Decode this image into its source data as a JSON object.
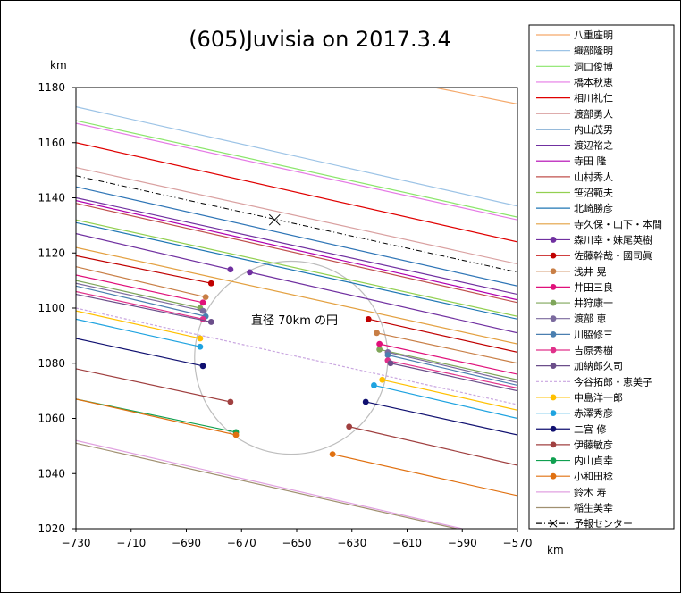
{
  "chart_data": {
    "type": "line",
    "title": "(605)Juvisia on 2017.3.4",
    "xlabel": "km",
    "ylabel": "km",
    "xlim": [
      -730,
      -570
    ],
    "ylim": [
      1020,
      1180
    ],
    "xticks": [
      -730,
      -710,
      -690,
      -670,
      -650,
      -630,
      -610,
      -590,
      -570
    ],
    "yticks": [
      1020,
      1040,
      1060,
      1080,
      1100,
      1120,
      1140,
      1160,
      1180
    ],
    "grid": false,
    "legend_position": "right",
    "annotation": {
      "text": "直径 70km の円"
    },
    "circle": {
      "cx": -652,
      "cy": 1082,
      "r": 35
    },
    "predicted_center": {
      "name": "予報センター",
      "x": -658,
      "y": 1132,
      "line": [
        [
          -730,
          1148
        ],
        [
          -570,
          1113
        ]
      ]
    },
    "series": [
      {
        "name": "八重座明",
        "color": "#F5A96B",
        "marker": false,
        "line": [
          [
            -600,
            1180
          ],
          [
            -570,
            1174
          ]
        ]
      },
      {
        "name": "織部隆明",
        "color": "#9CC3E6",
        "marker": false,
        "line": [
          [
            -730,
            1173
          ],
          [
            -570,
            1137
          ]
        ]
      },
      {
        "name": "洞口俊博",
        "color": "#8AE66A",
        "marker": false,
        "line": [
          [
            -730,
            1168
          ],
          [
            -570,
            1133
          ]
        ]
      },
      {
        "name": "橋本秋恵",
        "color": "#E57AE5",
        "marker": false,
        "line": [
          [
            -730,
            1167
          ],
          [
            -570,
            1132
          ]
        ]
      },
      {
        "name": "相川礼仁",
        "color": "#E00000",
        "marker": false,
        "line": [
          [
            -730,
            1160
          ],
          [
            -570,
            1124
          ]
        ]
      },
      {
        "name": "渡部勇人",
        "color": "#D9A0A0",
        "marker": false,
        "line": [
          [
            -730,
            1151
          ],
          [
            -570,
            1116
          ]
        ]
      },
      {
        "name": "内山茂男",
        "color": "#2E75B6",
        "marker": false,
        "line": [
          [
            -730,
            1144
          ],
          [
            -570,
            1108
          ]
        ]
      },
      {
        "name": "渡辺裕之",
        "color": "#7030A0",
        "marker": false,
        "line": [
          [
            -730,
            1140
          ],
          [
            -570,
            1105
          ]
        ]
      },
      {
        "name": "寺田 隆",
        "color": "#B000B0",
        "marker": false,
        "line": [
          [
            -730,
            1139
          ],
          [
            -570,
            1103
          ]
        ]
      },
      {
        "name": "山村秀人",
        "color": "#C0504D",
        "marker": false,
        "line": [
          [
            -730,
            1138
          ],
          [
            -570,
            1102
          ]
        ]
      },
      {
        "name": "笹沼範夫",
        "color": "#92D050",
        "marker": false,
        "line": [
          [
            -730,
            1132
          ],
          [
            -570,
            1097
          ]
        ]
      },
      {
        "name": "北崎勝彦",
        "color": "#1F77B4",
        "marker": false,
        "line": [
          [
            -730,
            1131
          ],
          [
            -570,
            1096
          ]
        ]
      },
      {
        "name": "寺久保・山下・本間",
        "color": "#E3A040",
        "marker": false,
        "line": [
          [
            -730,
            1122
          ],
          [
            -570,
            1087
          ]
        ]
      },
      {
        "name": "森川幸・妹尾英樹",
        "color": "#7030A0",
        "marker": true,
        "segments": [
          [
            [
              -730,
              1127
            ],
            [
              -674,
              1114
            ]
          ],
          [
            [
              -667,
              1113
            ],
            [
              -570,
              1091
            ]
          ]
        ]
      },
      {
        "name": "佐藤幹哉・國司眞",
        "color": "#C00000",
        "marker": true,
        "segments": [
          [
            [
              -730,
              1119
            ],
            [
              -681,
              1109
            ]
          ],
          [
            [
              -624,
              1096
            ],
            [
              -570,
              1084
            ]
          ]
        ]
      },
      {
        "name": "浅井 晃",
        "color": "#C87E45",
        "marker": true,
        "segments": [
          [
            [
              -730,
              1115
            ],
            [
              -683,
              1104
            ]
          ],
          [
            [
              -621,
              1091
            ],
            [
              -570,
              1080
            ]
          ]
        ]
      },
      {
        "name": "井田三良",
        "color": "#E0107A",
        "marker": true,
        "segments": [
          [
            [
              -730,
              1112
            ],
            [
              -684,
              1102
            ]
          ],
          [
            [
              -620,
              1087
            ],
            [
              -570,
              1076
            ]
          ]
        ]
      },
      {
        "name": "井狩康一",
        "color": "#7FA65A",
        "marker": true,
        "segments": [
          [
            [
              -730,
              1110
            ],
            [
              -685,
              1100
            ]
          ],
          [
            [
              -620,
              1085
            ],
            [
              -570,
              1074
            ]
          ]
        ]
      },
      {
        "name": "渡部 恵",
        "color": "#7B6A9E",
        "marker": true,
        "segments": [
          [
            [
              -730,
              1109
            ],
            [
              -684,
              1099
            ]
          ],
          [
            [
              -617,
              1084
            ],
            [
              -570,
              1073
            ]
          ]
        ]
      },
      {
        "name": "川脇修三",
        "color": "#4A7FB0",
        "marker": true,
        "segments": [
          [
            [
              -730,
              1108
            ],
            [
              -683,
              1097
            ]
          ],
          [
            [
              -617,
              1083
            ],
            [
              -570,
              1072
            ]
          ]
        ]
      },
      {
        "name": "吉原秀樹",
        "color": "#E0308A",
        "marker": true,
        "segments": [
          [
            [
              -730,
              1106
            ],
            [
              -684,
              1096
            ]
          ],
          [
            [
              -617,
              1081
            ],
            [
              -570,
              1071
            ]
          ]
        ]
      },
      {
        "name": "加納郎久司",
        "color": "#6B4E8A",
        "marker": true,
        "segments": [
          [
            [
              -730,
              1105
            ],
            [
              -681,
              1095
            ]
          ],
          [
            [
              -616,
              1080
            ],
            [
              -570,
              1070
            ]
          ]
        ]
      },
      {
        "name": "今谷拓郎・恵美子",
        "color": "#C9A6E0",
        "dashed": true,
        "marker": false,
        "line": [
          [
            -730,
            1100
          ],
          [
            -570,
            1065
          ]
        ]
      },
      {
        "name": "中島洋一郎",
        "color": "#FFC000",
        "marker": true,
        "segments": [
          [
            [
              -730,
              1099
            ],
            [
              -685,
              1089
            ]
          ],
          [
            [
              -619,
              1074
            ],
            [
              -570,
              1063
            ]
          ]
        ]
      },
      {
        "name": "赤澤秀彦",
        "color": "#1FA3E0",
        "marker": true,
        "segments": [
          [
            [
              -730,
              1096
            ],
            [
              -685,
              1086
            ]
          ],
          [
            [
              -622,
              1072
            ],
            [
              -570,
              1060
            ]
          ]
        ]
      },
      {
        "name": "二宮 修",
        "color": "#101070",
        "marker": true,
        "segments": [
          [
            [
              -730,
              1089
            ],
            [
              -684,
              1079
            ]
          ],
          [
            [
              -625,
              1066
            ],
            [
              -570,
              1054
            ]
          ]
        ]
      },
      {
        "name": "伊藤敏彦",
        "color": "#A04040",
        "marker": true,
        "segments": [
          [
            [
              -730,
              1078
            ],
            [
              -674,
              1066
            ]
          ],
          [
            [
              -631,
              1057
            ],
            [
              -570,
              1043
            ]
          ]
        ]
      },
      {
        "name": "内山貞幸",
        "color": "#10A050",
        "marker": true,
        "segments": [
          [
            [
              -730,
              1067
            ],
            [
              -672,
              1055
            ]
          ]
        ]
      },
      {
        "name": "小和田稔",
        "color": "#E07010",
        "marker": true,
        "segments": [
          [
            [
              -730,
              1067
            ],
            [
              -672,
              1054
            ]
          ],
          [
            [
              -637,
              1047
            ],
            [
              -570,
              1032
            ]
          ]
        ]
      },
      {
        "name": "鈴木 寿",
        "color": "#E0A0E0",
        "marker": false,
        "line": [
          [
            -730,
            1052
          ],
          [
            -590,
            1020
          ]
        ]
      },
      {
        "name": "稲生美幸",
        "color": "#A09070",
        "marker": false,
        "line": [
          [
            -730,
            1051
          ],
          [
            -592,
            1020
          ]
        ]
      }
    ]
  }
}
